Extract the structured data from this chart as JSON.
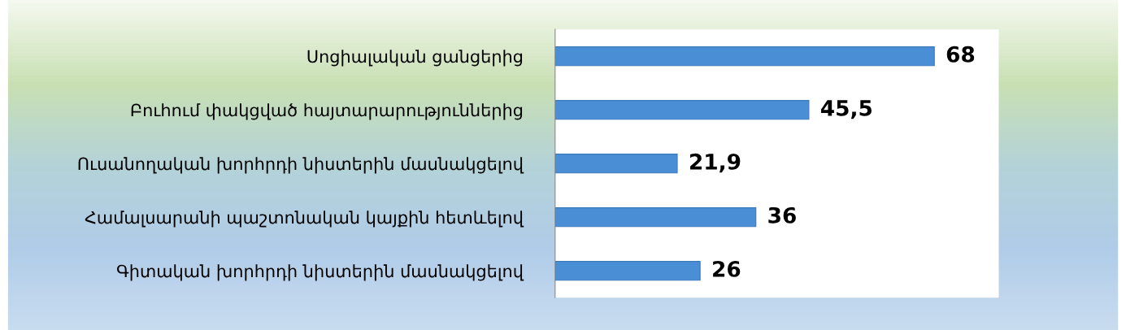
{
  "chart_data": {
    "type": "bar",
    "orientation": "horizontal",
    "categories": [
      "Սոցիալական ցանցերից",
      "Բուհում փակցված հայտարարություններից",
      "Ուսանողական խորհրդի նիստերին մասնակցելով",
      "Համալսարանի պաշտոնական կայքին հետևելով",
      "Գիտական խորհրդի նիստերին մասնակցելով"
    ],
    "values": [
      68,
      45.5,
      21.9,
      36,
      26
    ],
    "value_labels": [
      "68",
      "45,5",
      "21,9",
      "36",
      "26"
    ],
    "color": "#4a8fd6",
    "grid": false,
    "legend": false,
    "tick_labels": "y"
  }
}
